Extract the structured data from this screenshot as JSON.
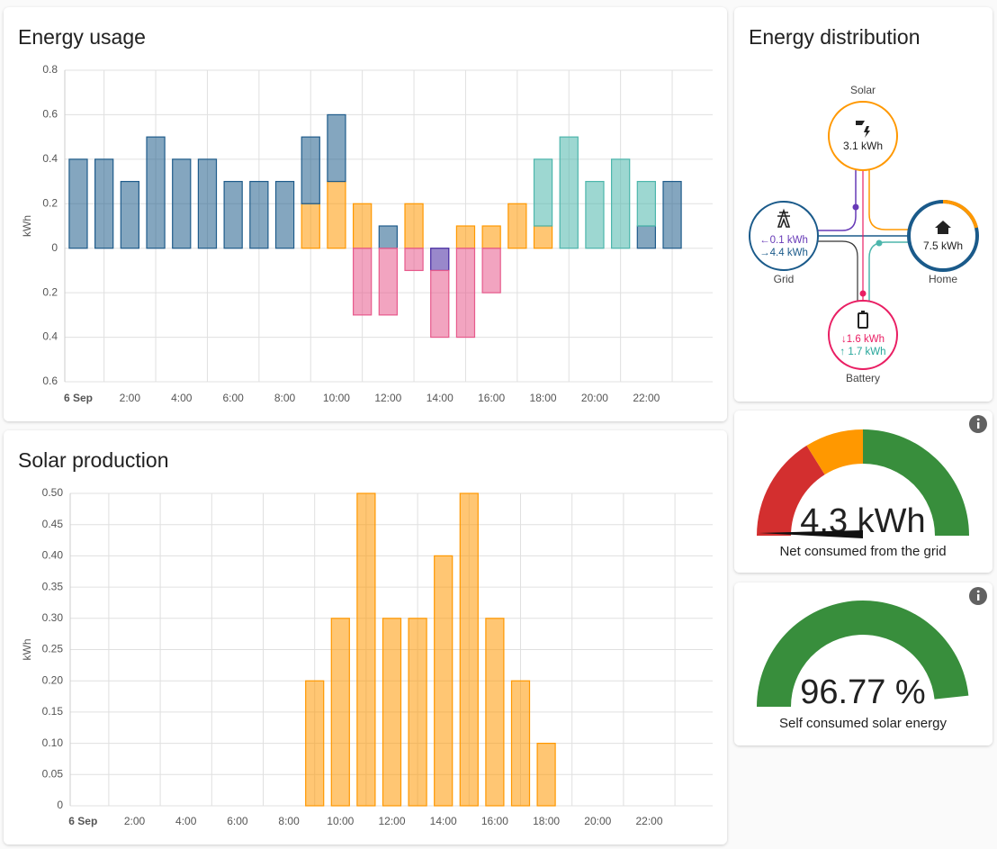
{
  "chart_data": [
    {
      "type": "bar",
      "stacked": true,
      "title": "Energy usage",
      "y_label": "kWh",
      "categories": [
        "6 Sep",
        null,
        "2:00",
        null,
        "4:00",
        null,
        "6:00",
        null,
        "8:00",
        null,
        "10:00",
        null,
        "12:00",
        null,
        "14:00",
        null,
        "16:00",
        null,
        "18:00",
        null,
        "20:00",
        null,
        "22:00",
        null
      ],
      "series": [
        {
          "color": "#ff9800",
          "values": [
            0,
            0,
            0,
            0,
            0,
            0,
            0,
            0,
            0,
            0.2,
            0.3,
            0.2,
            0,
            0.2,
            0,
            0.1,
            0.1,
            0.2,
            0.1,
            0,
            0,
            0,
            0,
            0
          ]
        },
        {
          "color": "#1f5c8b",
          "values": [
            0.4,
            0.4,
            0.3,
            0.5,
            0.4,
            0.4,
            0.3,
            0.3,
            0.3,
            0.3,
            0.3,
            0,
            0.1,
            0,
            0,
            0,
            0,
            0,
            0,
            0,
            0,
            0,
            0.1,
            0.3
          ]
        },
        {
          "color": "#4db6ac",
          "values": [
            0,
            0,
            0,
            0,
            0,
            0,
            0,
            0,
            0,
            0,
            0,
            0,
            0,
            0,
            0,
            0,
            0,
            0,
            0.3,
            0.5,
            0.3,
            0.4,
            0.2,
            0
          ]
        },
        {
          "color": "#4527a0",
          "values": [
            0,
            0,
            0,
            0,
            0,
            0,
            0,
            0,
            0,
            0,
            0,
            0,
            0,
            0,
            -0.1,
            0,
            0,
            0,
            0,
            0,
            0,
            0,
            0,
            0
          ]
        },
        {
          "color": "#e75a8c",
          "values": [
            0,
            0,
            0,
            0,
            0,
            0,
            0,
            0,
            0,
            0,
            0,
            -0.3,
            -0.3,
            -0.1,
            -0.3,
            -0.4,
            -0.2,
            0,
            0,
            0,
            0,
            0,
            0,
            0
          ]
        }
      ],
      "ylim": [
        -0.6,
        0.8
      ],
      "yticks": [
        0.8,
        0.6,
        0.4,
        0.2,
        0,
        {
          "value": -0.2,
          "label": "0.2"
        },
        {
          "value": -0.4,
          "label": "0.4"
        },
        {
          "value": -0.6,
          "label": "0.6"
        }
      ],
      "grid": true
    },
    {
      "type": "bar",
      "title": "Solar production",
      "y_label": "kWh",
      "categories": [
        "6 Sep",
        null,
        "2:00",
        null,
        "4:00",
        null,
        "6:00",
        null,
        "8:00",
        null,
        "10:00",
        null,
        "12:00",
        null,
        "14:00",
        null,
        "16:00",
        null,
        "18:00",
        null,
        "20:00",
        null,
        "22:00",
        null
      ],
      "values": [
        0,
        0,
        0,
        0,
        0,
        0,
        0,
        0,
        0,
        0.2,
        0.3,
        0.5,
        0.3,
        0.3,
        0.4,
        0.5,
        0.3,
        0.2,
        0.1,
        0,
        0,
        0,
        0,
        0
      ],
      "color": "#ff9800",
      "ylim": [
        0,
        0.5
      ],
      "yticks": [
        0,
        0.05,
        {
          "value": 0.1,
          "label": "0.10"
        },
        0.15,
        {
          "value": 0.2,
          "label": "0.20"
        },
        0.25,
        {
          "value": 0.3,
          "label": "0.30"
        },
        0.35,
        {
          "value": 0.4,
          "label": "0.40"
        },
        0.45,
        {
          "value": 0.5,
          "label": "0.50"
        }
      ],
      "grid": true
    }
  ],
  "distribution": {
    "title": "Energy distribution",
    "solar": {
      "label": "Solar",
      "value": "3.1 kWh"
    },
    "grid": {
      "label": "Grid",
      "returned": "←0.1 kWh",
      "consumed": "→4.4 kWh"
    },
    "home": {
      "label": "Home",
      "value": "7.5 kWh"
    },
    "battery": {
      "label": "Battery",
      "in": "↓1.6 kWh",
      "out": "↑ 1.7 kWh"
    }
  },
  "gauges": [
    {
      "value": "4.3 kWh",
      "name": "Net consumed from the grid"
    },
    {
      "value": "96.77 %",
      "name": "Self consumed solar energy"
    }
  ]
}
